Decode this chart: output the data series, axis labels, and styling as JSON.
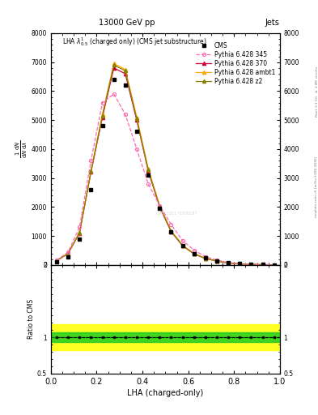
{
  "title_top": "13000 GeV pp",
  "title_right": "Jets",
  "plot_title": "LHA $\\lambda^1_{0.5}$ (charged only) (CMS jet substructure)",
  "xlabel": "LHA (charged-only)",
  "ylabel_main": "$\\frac{1}{\\mathrm{d}N}\\frac{\\mathrm{d}N}{\\mathrm{d}\\lambda}$",
  "ylabel_ratio": "Ratio to CMS",
  "right_label": "mcplots.cern.ch [arXiv:1306.3436]",
  "right_label2": "Rivet 3.1.10, $\\geq$ 2.8M events",
  "watermark": "CMS_2021_I1920187",
  "cms_x": [
    0.025,
    0.075,
    0.125,
    0.175,
    0.225,
    0.275,
    0.325,
    0.375,
    0.425,
    0.475,
    0.525,
    0.575,
    0.625,
    0.675,
    0.725,
    0.775,
    0.825,
    0.875,
    0.925,
    0.975
  ],
  "cms_y": [
    120,
    280,
    900,
    2600,
    4800,
    6400,
    6200,
    4600,
    3100,
    1950,
    1150,
    670,
    390,
    240,
    145,
    78,
    40,
    20,
    9,
    4
  ],
  "p345_x": [
    0.025,
    0.075,
    0.125,
    0.175,
    0.225,
    0.275,
    0.325,
    0.375,
    0.425,
    0.475,
    0.525,
    0.575,
    0.625,
    0.675,
    0.725,
    0.775,
    0.825,
    0.875,
    0.925,
    0.975
  ],
  "p345_y": [
    160,
    440,
    1300,
    3600,
    5600,
    5900,
    5200,
    4000,
    2800,
    2050,
    1400,
    840,
    510,
    285,
    165,
    85,
    43,
    22,
    10,
    4
  ],
  "p370_x": [
    0.025,
    0.075,
    0.125,
    0.175,
    0.225,
    0.275,
    0.325,
    0.375,
    0.425,
    0.475,
    0.525,
    0.575,
    0.625,
    0.675,
    0.725,
    0.775,
    0.825,
    0.875,
    0.925,
    0.975
  ],
  "p370_y": [
    145,
    390,
    1100,
    3200,
    5100,
    6800,
    6600,
    5000,
    3250,
    2000,
    1150,
    660,
    380,
    220,
    130,
    68,
    35,
    17,
    8,
    3
  ],
  "pambt1_x": [
    0.025,
    0.075,
    0.125,
    0.175,
    0.225,
    0.275,
    0.325,
    0.375,
    0.425,
    0.475,
    0.525,
    0.575,
    0.625,
    0.675,
    0.725,
    0.775,
    0.825,
    0.875,
    0.925,
    0.975
  ],
  "pambt1_y": [
    148,
    400,
    1120,
    3250,
    5200,
    6950,
    6750,
    5100,
    3320,
    2050,
    1180,
    680,
    390,
    226,
    134,
    70,
    36,
    18,
    8,
    3
  ],
  "pz2_x": [
    0.025,
    0.075,
    0.125,
    0.175,
    0.225,
    0.275,
    0.325,
    0.375,
    0.425,
    0.475,
    0.525,
    0.575,
    0.625,
    0.675,
    0.725,
    0.775,
    0.825,
    0.875,
    0.925,
    0.975
  ],
  "pz2_y": [
    146,
    395,
    1110,
    3230,
    5150,
    6900,
    6700,
    5050,
    3290,
    2030,
    1165,
    672,
    385,
    223,
    132,
    69,
    35,
    17,
    8,
    3
  ],
  "color_cms": "#000000",
  "color_345": "#FF69B4",
  "color_370": "#CC0033",
  "color_ambt1": "#FFA500",
  "color_z2": "#8B8000",
  "ylim_main": [
    0,
    8000
  ],
  "ylim_ratio": [
    0.5,
    2.0
  ],
  "xlim": [
    0.0,
    1.0
  ],
  "ratio_band_green": [
    0.93,
    1.07
  ],
  "ratio_band_yellow": [
    0.82,
    1.18
  ],
  "yticks_main": [
    0,
    1000,
    2000,
    3000,
    4000,
    5000,
    6000,
    7000,
    8000
  ],
  "ratio_x": [
    0.025,
    0.075,
    0.125,
    0.175,
    0.225,
    0.275,
    0.325,
    0.375,
    0.425,
    0.475,
    0.525,
    0.575,
    0.625,
    0.675,
    0.725,
    0.775,
    0.825,
    0.875,
    0.925,
    0.975
  ],
  "ratio_cms": [
    1.0,
    1.0,
    1.0,
    1.0,
    1.0,
    1.0,
    1.0,
    1.0,
    1.0,
    1.0,
    1.0,
    1.0,
    1.0,
    1.0,
    1.0,
    1.0,
    1.0,
    1.0,
    1.0,
    1.0
  ]
}
